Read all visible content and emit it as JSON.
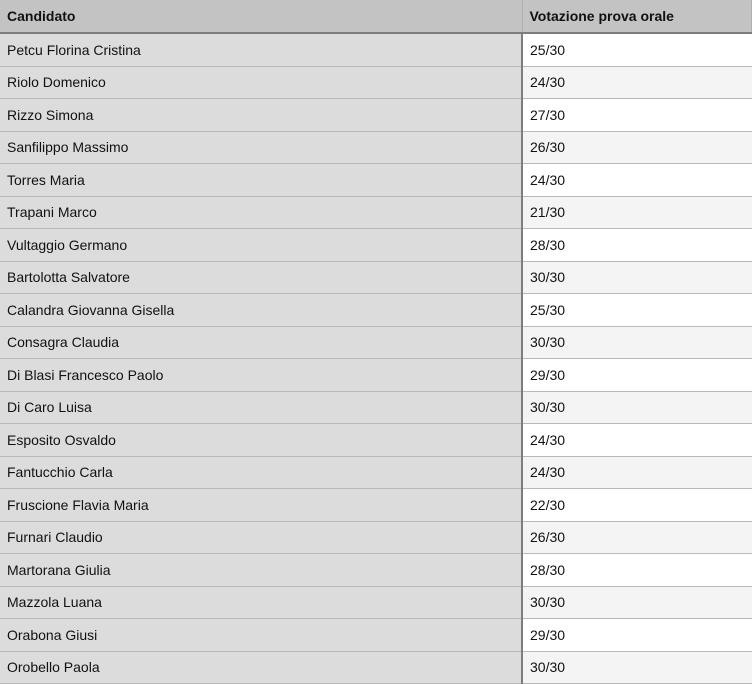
{
  "table": {
    "headers": [
      "Candidato",
      "Votazione prova orale"
    ],
    "rows": [
      [
        "Petcu Florina Cristina",
        "25/30"
      ],
      [
        "Riolo Domenico",
        "24/30"
      ],
      [
        "Rizzo Simona",
        "27/30"
      ],
      [
        "Sanfilippo Massimo",
        "26/30"
      ],
      [
        "Torres Maria",
        "24/30"
      ],
      [
        "Trapani Marco",
        "21/30"
      ],
      [
        "Vultaggio Germano",
        "28/30"
      ],
      [
        "Bartolotta Salvatore",
        "30/30"
      ],
      [
        "Calandra Giovanna Gisella",
        "25/30"
      ],
      [
        "Consagra Claudia",
        "30/30"
      ],
      [
        "Di Blasi Francesco Paolo",
        "29/30"
      ],
      [
        "Di Caro Luisa",
        "30/30"
      ],
      [
        "Esposito Osvaldo",
        "24/30"
      ],
      [
        "Fantucchio Carla",
        "24/30"
      ],
      [
        "Fruscione Flavia Maria",
        "22/30"
      ],
      [
        "Furnari Claudio",
        "26/30"
      ],
      [
        "Martorana Giulia",
        "28/30"
      ],
      [
        "Mazzola Luana",
        "30/30"
      ],
      [
        "Orabona Giusi",
        "29/30"
      ],
      [
        "Orobello Paola",
        "30/30"
      ]
    ]
  }
}
